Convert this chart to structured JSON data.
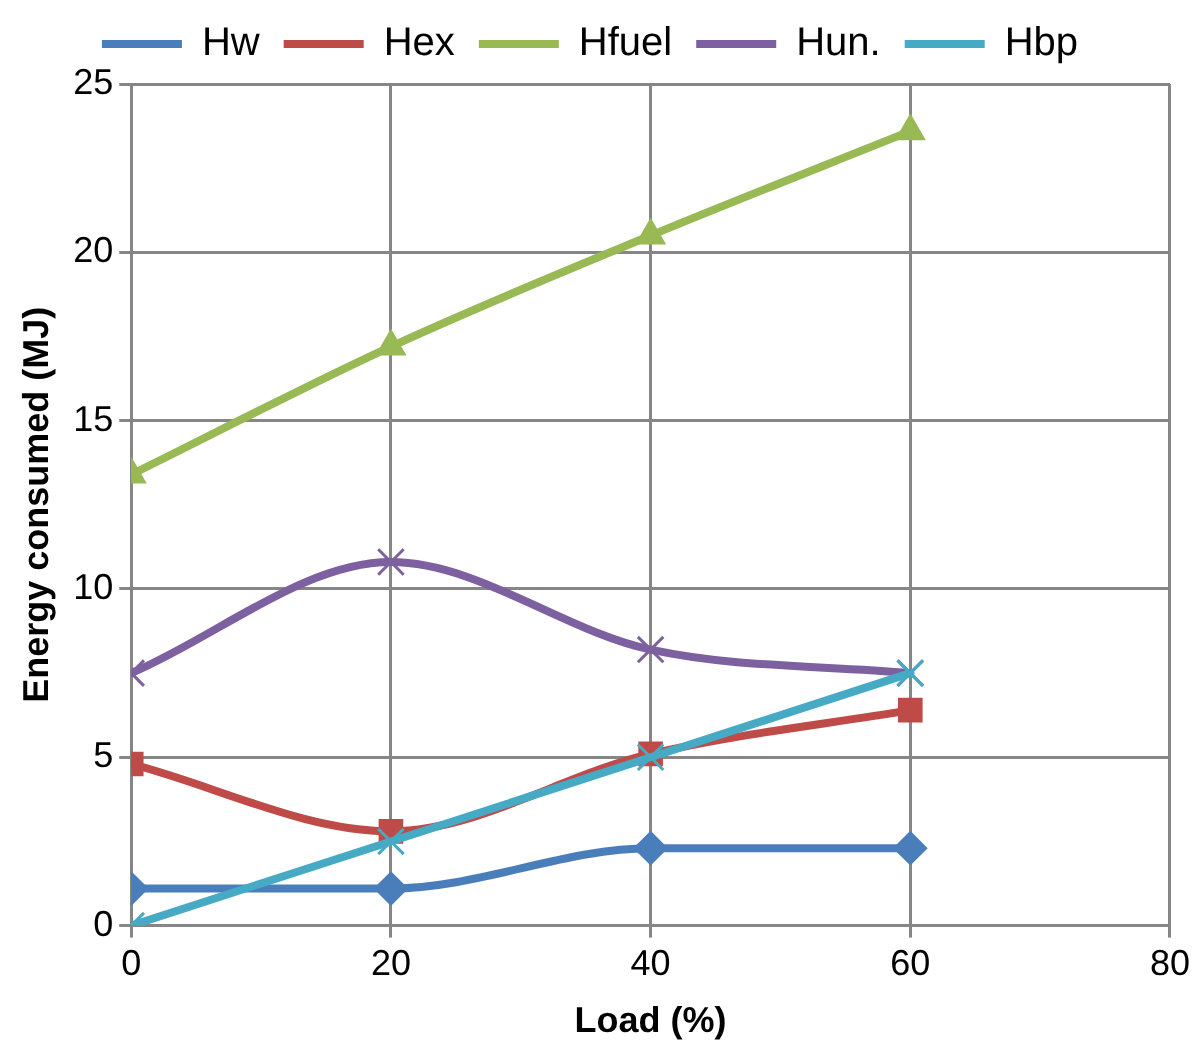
{
  "chart_data": {
    "type": "line",
    "xlabel": "Load (%)",
    "ylabel": "Energy consumed (MJ)",
    "x": [
      0,
      20,
      40,
      60
    ],
    "series": [
      {
        "name": "Hw",
        "color": "#4a7ebb",
        "marker": "diamond",
        "values": [
          1.1,
          1.1,
          2.3,
          2.3
        ]
      },
      {
        "name": "Hex",
        "color": "#be4b48",
        "marker": "square",
        "values": [
          4.8,
          2.8,
          5.1,
          6.4
        ]
      },
      {
        "name": "Hfuel",
        "color": "#98b954",
        "marker": "triangle",
        "values": [
          13.4,
          17.2,
          20.5,
          23.6
        ]
      },
      {
        "name": "Hun.",
        "color": "#7d60a0",
        "marker": "cross",
        "values": [
          7.5,
          10.8,
          8.2,
          7.5
        ]
      },
      {
        "name": "Hbp",
        "color": "#46aac5",
        "marker": "cross",
        "values": [
          0,
          2.5,
          5.0,
          7.5
        ]
      }
    ],
    "xlim": [
      0,
      80
    ],
    "xticks": [
      0,
      20,
      40,
      60,
      80
    ],
    "ylim": [
      0,
      25
    ],
    "yticks": [
      0,
      5,
      10,
      15,
      20,
      25
    ],
    "grid": true,
    "legend": "top",
    "line_style": "solid"
  }
}
